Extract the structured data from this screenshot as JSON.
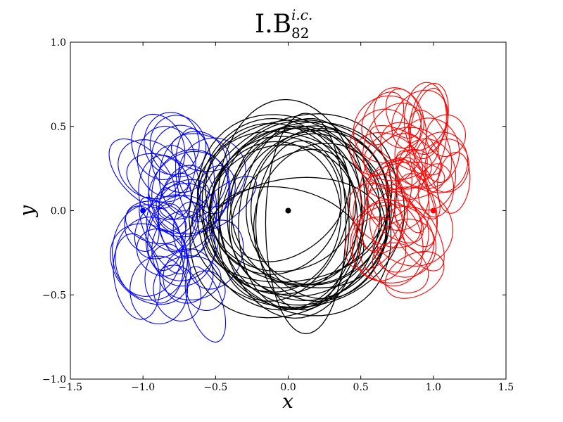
{
  "chart_data": {
    "type": "line",
    "title": {
      "main": "I.B",
      "superscript": "i.c.",
      "subscript": "82"
    },
    "xlabel": "x",
    "ylabel": "y",
    "xlim": [
      -1.5,
      1.5
    ],
    "ylim": [
      -1.0,
      1.0
    ],
    "x_ticks": [
      -1.5,
      -1.0,
      -0.5,
      0.0,
      0.5,
      1.0,
      1.5
    ],
    "x_tick_labels": [
      "−1.5",
      "−1.0",
      "−0.5",
      "0.0",
      "0.5",
      "1.0",
      "1.5"
    ],
    "y_ticks": [
      -1.0,
      -0.5,
      0.0,
      0.5,
      1.0
    ],
    "y_tick_labels": [
      "−1.0",
      "−0.5",
      "0.0",
      "0.5",
      "1.0"
    ],
    "grid": false,
    "legend": "none",
    "series": [
      {
        "color": "#0000ff",
        "center": [
          -0.75,
          -0.05
        ],
        "loop_x_range": [
          -1.3,
          -0.2
        ],
        "loop_y_range": [
          -0.98,
          0.5
        ]
      },
      {
        "color": "#000000",
        "center": [
          0.05,
          -0.02
        ],
        "loop_x_range": [
          -0.75,
          0.8
        ],
        "loop_y_range": [
          -0.58,
          0.58
        ]
      },
      {
        "color": "#ff0000",
        "center": [
          0.85,
          0.1
        ],
        "loop_x_range": [
          0.3,
          1.32
        ],
        "loop_y_range": [
          -0.55,
          0.98
        ]
      }
    ],
    "markers": [
      {
        "x": -1.0,
        "y": 0.0,
        "color": "#0000ff"
      },
      {
        "x": 0.0,
        "y": 0.0,
        "color": "#000000"
      },
      {
        "x": 1.0,
        "y": 0.0,
        "color": "#ff0000"
      }
    ]
  }
}
